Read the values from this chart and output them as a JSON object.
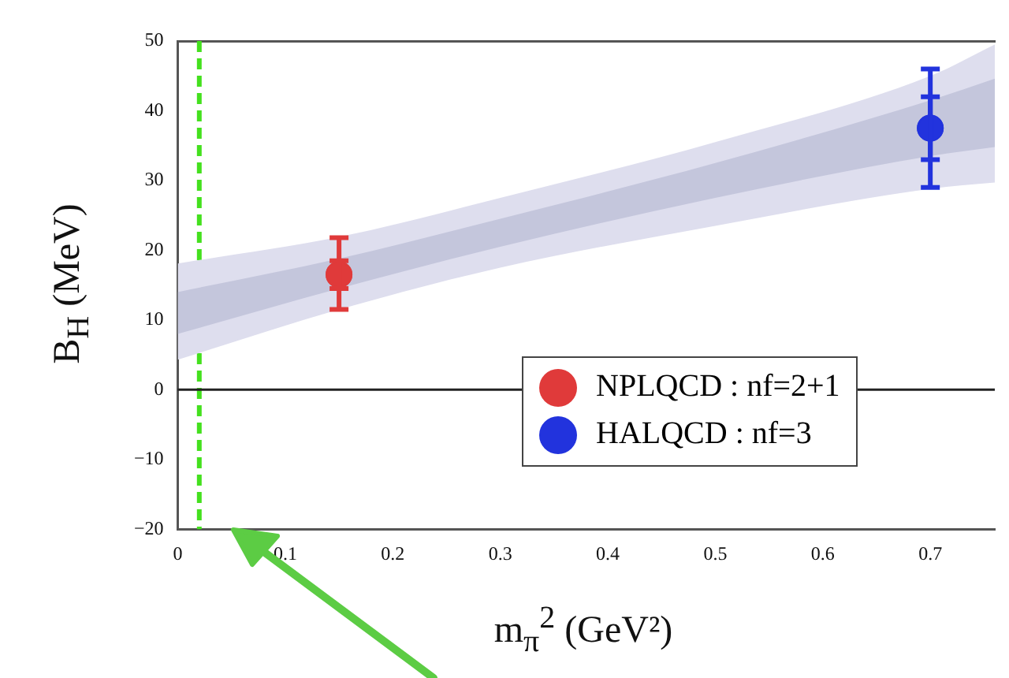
{
  "chart_data": {
    "type": "scatter",
    "xlabel": "m$_{π}$$^{2}$ (GeV²)",
    "ylabel": "B$_{H}$ (MeV)",
    "xlim": [
      0,
      0.76
    ],
    "xticks": [
      0,
      0.1,
      0.2,
      0.3,
      0.4,
      0.5,
      0.6,
      0.7
    ],
    "ylim": [
      -20,
      50
    ],
    "yticks": [
      -20,
      -10,
      0,
      10,
      20,
      30,
      40,
      50
    ],
    "legend": "bottom right",
    "grid": false,
    "marker": "circle",
    "ref_lines": [
      {
        "axis": "x",
        "value": 0.02,
        "color": "#44e01e",
        "line_style": "dashed"
      },
      {
        "axis": "y",
        "value": 0,
        "color": "#222222",
        "line_style": "solid"
      }
    ],
    "series": [
      {
        "type": "line",
        "color": "#dedeee",
        "x": [
          0,
          0.15,
          0.3,
          0.5,
          0.7,
          0.76
        ],
        "values": [
          null,
          null,
          null,
          null,
          null,
          null
        ],
        "lower": [
          4.3,
          11.5,
          17.5,
          23.5,
          28.8,
          29.7
        ],
        "upper": [
          18.1,
          21.9,
          27.5,
          35.5,
          45.0,
          49.5
        ]
      },
      {
        "type": "line",
        "color": "#c4c6dc",
        "x": [
          0,
          0.15,
          0.3,
          0.5,
          0.7,
          0.76
        ],
        "values": [
          null,
          null,
          null,
          null,
          null,
          null
        ],
        "lower": [
          8.0,
          14.5,
          20.5,
          27.5,
          33.5,
          34.8
        ],
        "upper": [
          14.0,
          18.8,
          24.5,
          32.5,
          41.5,
          44.6
        ]
      },
      {
        "name": "NPLQCD : nf=2+1",
        "color": "#e03a3a",
        "x": [
          0.15
        ],
        "values": [
          16.5
        ],
        "errors": [
          [
            11.5,
            21.8
          ]
        ]
      },
      {
        "color": "#e03a3a",
        "x": [
          0.15
        ],
        "values": [
          16.5
        ],
        "errors": [
          [
            14.5,
            18.5
          ]
        ]
      },
      {
        "name": "HALQCD : nf=3",
        "color": "#2233dd",
        "x": [
          0.7
        ],
        "values": [
          37.5
        ],
        "errors": [
          [
            29,
            46
          ]
        ]
      },
      {
        "color": "#2233dd",
        "x": [
          0.7
        ],
        "values": [
          37.5
        ],
        "errors": [
          [
            33,
            42
          ]
        ]
      }
    ]
  }
}
